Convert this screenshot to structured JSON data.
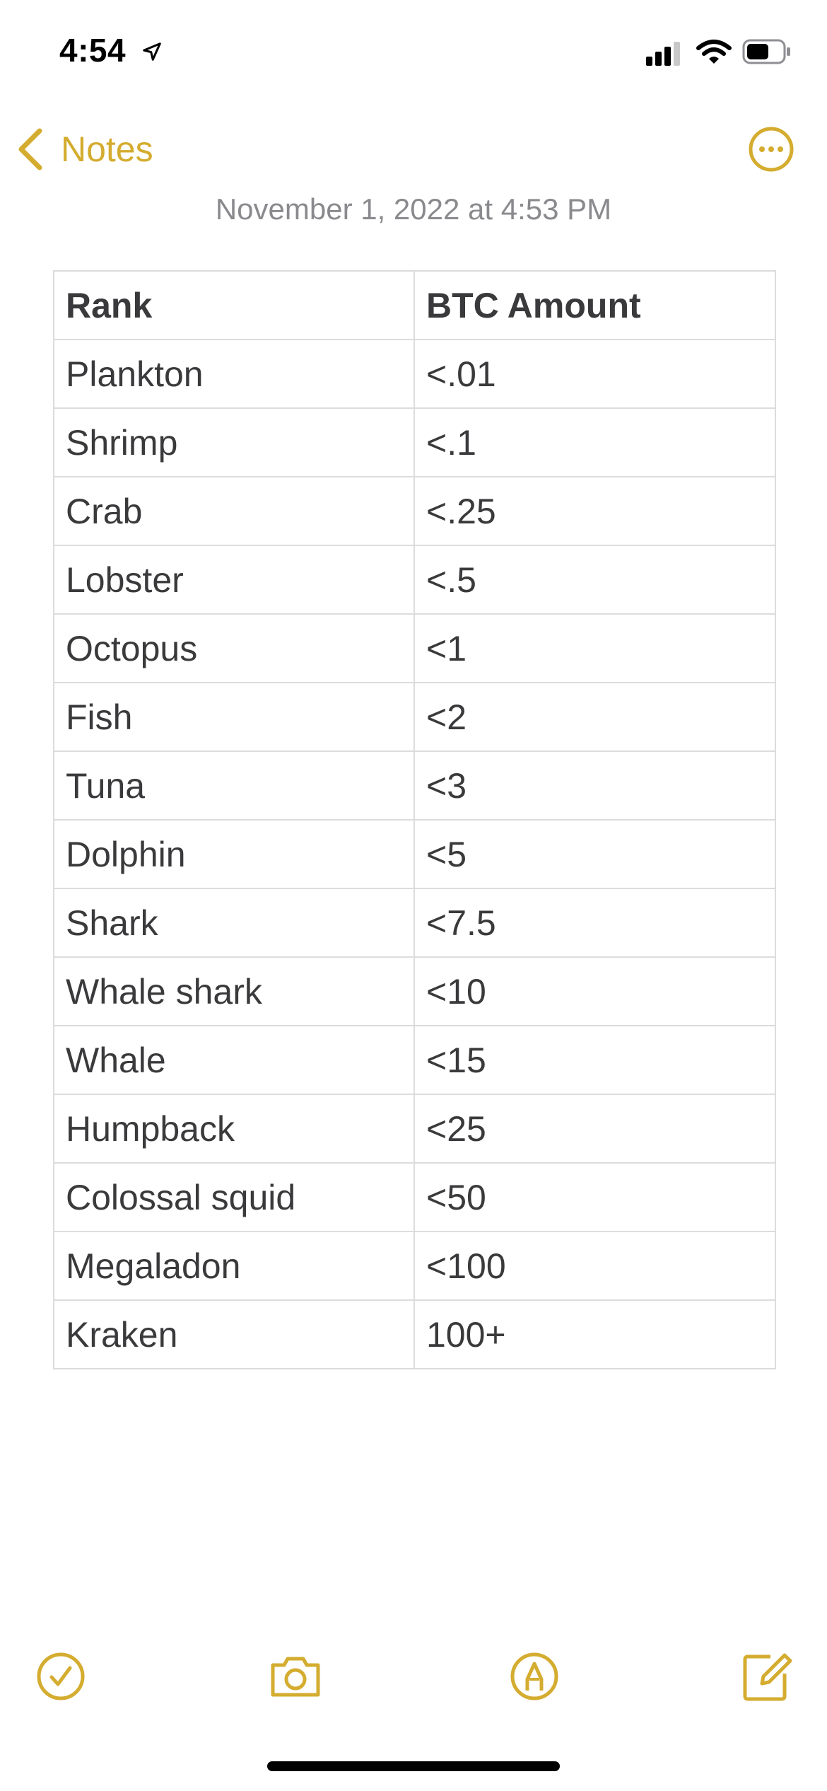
{
  "status_bar": {
    "time": "4:54",
    "icons": [
      "location-arrow-icon",
      "cellular-signal-icon",
      "wifi-icon",
      "battery-icon"
    ]
  },
  "nav": {
    "back_label": "Notes",
    "back_icon": "chevron-left-icon",
    "more_icon": "ellipsis-circle-icon"
  },
  "note": {
    "date": "November 1, 2022 at 4:53 PM",
    "table": {
      "headers": [
        "Rank",
        "BTC Amount"
      ],
      "rows": [
        [
          "Plankton",
          "<.01"
        ],
        [
          "Shrimp",
          "<.1"
        ],
        [
          "Crab",
          "<.25"
        ],
        [
          "Lobster",
          "<.5"
        ],
        [
          "Octopus",
          "<1"
        ],
        [
          "Fish",
          "<2"
        ],
        [
          "Tuna",
          "<3"
        ],
        [
          "Dolphin",
          "<5"
        ],
        [
          "Shark",
          "<7.5"
        ],
        [
          "Whale shark",
          "<10"
        ],
        [
          "Whale",
          "<15"
        ],
        [
          "Humpback",
          "<25"
        ],
        [
          "Colossal squid",
          "<50"
        ],
        [
          "Megaladon",
          "<100"
        ],
        [
          "Kraken",
          "100+"
        ]
      ]
    }
  },
  "toolbar": {
    "icons": [
      "checklist-icon",
      "camera-icon",
      "markup-icon",
      "compose-icon"
    ]
  },
  "colors": {
    "accent": "#d4ac2f",
    "text": "#3a3a3c",
    "secondary_text": "#8a8a8e",
    "table_border": "#dcdcdc"
  }
}
